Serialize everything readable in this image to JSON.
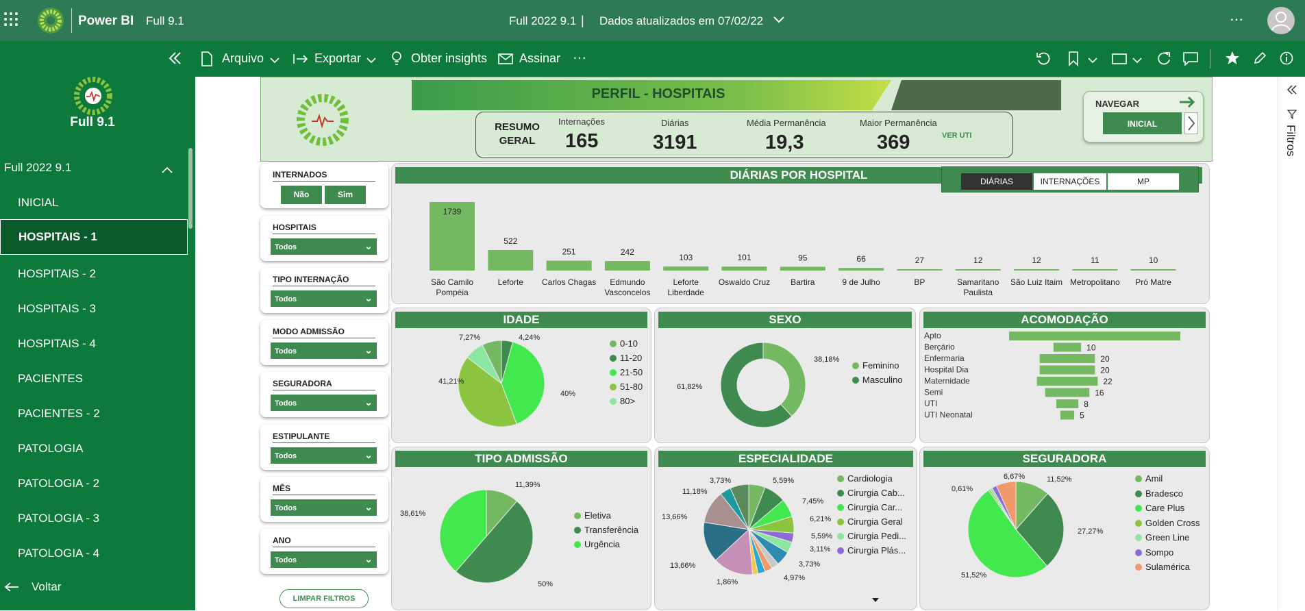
{
  "topbar": {
    "app_name": "Power BI",
    "workspace": "Full 9.1",
    "report_title": "Full 2022 9.1",
    "separator": "|",
    "updated": "Dados atualizados em 07/02/22",
    "more": "⋯"
  },
  "cmdbar": {
    "file": "Arquivo",
    "export": "Exportar",
    "insights": "Obter insights",
    "subscribe": "Assinar",
    "more": "⋯"
  },
  "sidebar": {
    "title": "Full 9.1",
    "section": "Full 2022 9.1",
    "items": [
      {
        "label": "INICIAL"
      },
      {
        "label": "HOSPITAIS - 1"
      },
      {
        "label": "HOSPITAIS - 2"
      },
      {
        "label": "HOSPITAIS - 3"
      },
      {
        "label": "HOSPITAIS - 4"
      },
      {
        "label": "PACIENTES"
      },
      {
        "label": "PACIENTES - 2"
      },
      {
        "label": "PATOLOGIA"
      },
      {
        "label": "PATOLOGIA - 2"
      },
      {
        "label": "PATOLOGIA - 3"
      },
      {
        "label": "PATOLOGIA - 4"
      }
    ],
    "back": "Voltar"
  },
  "rightpane": {
    "filters": "Filtros"
  },
  "header": {
    "title": "PERFIL - HOSPITAIS",
    "summary_label": "RESUMO GERAL",
    "kpis": [
      {
        "label": "Internações",
        "value": "165"
      },
      {
        "label": "Diárias",
        "value": "3191"
      },
      {
        "label": "Média Permanência",
        "value": "19,3"
      },
      {
        "label": "Maior Permanência",
        "value": "369"
      }
    ],
    "ver_uti": "VER UTI",
    "navegar": "NAVEGAR",
    "inicial": "INICIAL"
  },
  "slicers": {
    "internados": {
      "title": "INTERNADOS",
      "options": [
        "Não",
        "Sim"
      ]
    },
    "list": [
      {
        "title": "HOSPITAIS",
        "value": "Todos"
      },
      {
        "title": "TIPO INTERNAÇÃO",
        "value": "Todos"
      },
      {
        "title": "MODO ADMISSÃO",
        "value": "Todos"
      },
      {
        "title": "SEGURADORA",
        "value": "Todos"
      },
      {
        "title": "ESTIPULANTE",
        "value": "Todos"
      },
      {
        "title": "MÊS",
        "value": "Todos"
      },
      {
        "title": "ANO",
        "value": "Todos"
      }
    ],
    "clear": "LIMPAR FILTROS"
  },
  "colors": {
    "dark_green": "#3f8a4f",
    "bar": "#74b862",
    "lime": "#43e84f"
  },
  "chart_data": [
    {
      "type": "bar",
      "title": "DIÁRIAS POR HOSPITAL",
      "toggle": [
        "DIÁRIAS",
        "INTERNAÇÕES",
        "MP"
      ],
      "categories": [
        "São Camilo Pompéia",
        "Leforte",
        "Carlos Chagas",
        "Edmundo Vasconcelos",
        "Leforte Liberdade",
        "Oswaldo Cruz",
        "Bartira",
        "9 de Julho",
        "BP",
        "Samaritano Paulista",
        "São Luiz Itaim",
        "Metropolitano",
        "Pró Matre"
      ],
      "values": [
        1739,
        522,
        251,
        242,
        103,
        101,
        95,
        66,
        27,
        12,
        12,
        11,
        10
      ]
    },
    {
      "type": "pie",
      "title": "IDADE",
      "categories": [
        "0-10",
        "11-20",
        "21-50",
        "51-80",
        "80>"
      ],
      "colors": [
        "#74b862",
        "#3f8a4f",
        "#43e84f",
        "#8bc43f",
        "#8de6a0"
      ],
      "slice_labels": [
        "4,24%",
        "40%",
        "41,21%",
        "7,27%"
      ]
    },
    {
      "type": "pie",
      "title": "SEXO",
      "donut": true,
      "categories": [
        "Feminino",
        "Masculino"
      ],
      "values": [
        38.18,
        61.82
      ],
      "colors": [
        "#74b862",
        "#3f8a4f"
      ],
      "slice_labels": [
        "38,18%",
        "61,82%"
      ]
    },
    {
      "type": "bar",
      "title": "ACOMODAÇÃO",
      "categories": [
        "Apto",
        "Berçário",
        "Enfermaria",
        "Hospital Dia",
        "Maternidade",
        "Semi",
        "UTI",
        "UTI Neonatal"
      ],
      "values": [
        62,
        10,
        20,
        20,
        22,
        16,
        8,
        5
      ],
      "value_labels": [
        "",
        "10",
        "20",
        "20",
        "22",
        "16",
        "8",
        "5"
      ]
    },
    {
      "type": "pie",
      "title": "TIPO ADMISSÃO",
      "categories": [
        "Eletiva",
        "Transferência",
        "Urgência"
      ],
      "values": [
        11.39,
        50,
        38.61
      ],
      "colors": [
        "#74b862",
        "#3f8a4f",
        "#43e84f"
      ],
      "slice_labels": [
        "11,39%",
        "50%",
        "38,61%"
      ]
    },
    {
      "type": "pie",
      "title": "ESPECIALIDADE",
      "categories": [
        "Cardiologia",
        "Cirurgia Cab...",
        "Cirurgia Car...",
        "Cirurgia Geral",
        "Cirurgia Pedi...",
        "Cirurgia Plás..."
      ],
      "legend_colors": [
        "#74b862",
        "#3f8a4f",
        "#43e84f",
        "#8bc43f",
        "#8de6a0",
        "#8d6bd6"
      ],
      "slice_labels": [
        "5,59%",
        "7,45%",
        "6,21%",
        "5,59%",
        "3,11%",
        "3,73%",
        "4,97%",
        "1,86%",
        "13,66%",
        "13,66%",
        "11,18%",
        "3,73%"
      ]
    },
    {
      "type": "pie",
      "title": "SEGURADORA",
      "categories": [
        "Amil",
        "Bradesco",
        "Care Plus",
        "Golden Cross",
        "Green Line",
        "Sompo",
        "Sulamérica"
      ],
      "colors": [
        "#74b862",
        "#3f8a4f",
        "#43e84f",
        "#8bc43f",
        "#8de6a0",
        "#8d6bd6",
        "#f0996a"
      ],
      "slice_labels": [
        "11,52%",
        "27,27%",
        "51,52%",
        "0,61%",
        "6,67%"
      ]
    }
  ]
}
